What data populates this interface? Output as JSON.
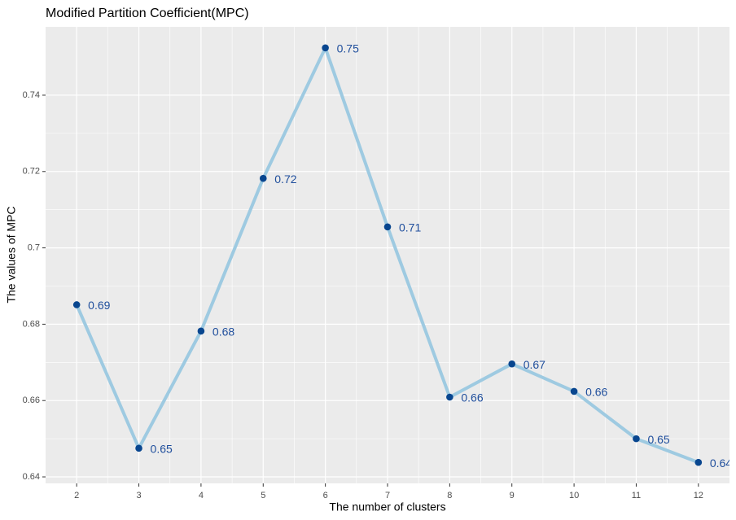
{
  "chart_data": {
    "type": "line",
    "title": "Modified Partition Coefficient(MPC)",
    "x_label": "The number of clusters",
    "y_label": "The values of MPC",
    "x": [
      2,
      3,
      4,
      5,
      6,
      7,
      8,
      9,
      10,
      11,
      12
    ],
    "series": [
      {
        "name": "MPC",
        "color": "#9ecae1",
        "point_color": "#08468f",
        "values": [
          0.6851,
          0.6475,
          0.6782,
          0.7182,
          0.7524,
          0.7055,
          0.6609,
          0.6696,
          0.6624,
          0.65,
          0.6438
        ],
        "value_labels": [
          "0.69",
          "0.65",
          "0.68",
          "0.72",
          "0.75",
          "0.71",
          "0.66",
          "0.67",
          "0.66",
          "0.65",
          "0.64"
        ]
      }
    ],
    "xlim": [
      1.5,
      12.5
    ],
    "xticks": [
      2,
      3,
      4,
      5,
      6,
      7,
      8,
      9,
      10,
      11,
      12
    ],
    "ylim": [
      0.6383,
      0.7579
    ],
    "yticks": [
      0.64,
      0.66,
      0.68,
      0.7,
      0.72,
      0.74
    ],
    "grid": true
  }
}
